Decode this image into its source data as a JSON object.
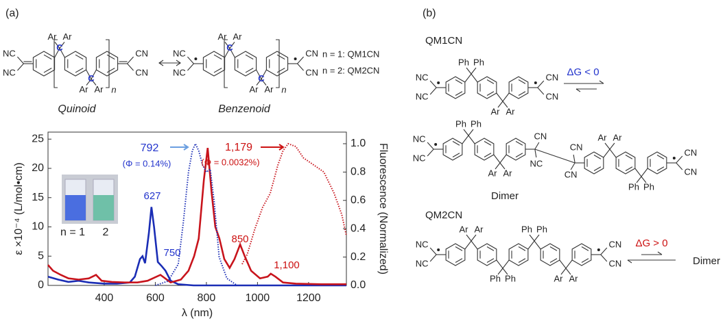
{
  "panel_a": {
    "label": "(a)",
    "quinoid": {
      "name": "Quinoid",
      "left": [
        "NC",
        "NC"
      ],
      "sp3": [
        [
          "Ar",
          "Ar"
        ],
        [
          "Ar",
          "Ar"
        ]
      ],
      "center": [
        "C",
        "C"
      ],
      "right": [
        "CN",
        "CN"
      ],
      "n": "n"
    },
    "benzenoid": {
      "name": "Benzenoid",
      "left": [
        "NC",
        "NC"
      ],
      "sp3": [
        [
          "Ar",
          "Ar"
        ],
        [
          "Ar",
          "Ar"
        ]
      ],
      "center": [
        "C",
        "C"
      ],
      "right": [
        "CN",
        "CN"
      ],
      "n": "n"
    },
    "legend": [
      "n = 1: QM1CN",
      "n = 2: QM2CN"
    ]
  },
  "panel_b": {
    "label": "(b)",
    "qm1cn": {
      "name": "QM1CN",
      "left": [
        "NC",
        "NC"
      ],
      "sp3": [
        [
          "Ph",
          "Ph"
        ],
        [
          "Ar",
          "Ar"
        ]
      ],
      "right": [
        "CN",
        "CN"
      ],
      "equilibrium": "ΔG < 0"
    },
    "dimer": {
      "name": "Dimer",
      "left_unit": {
        "left": [
          "NC",
          "NC"
        ],
        "sp3": [
          [
            "Ph",
            "Ph"
          ],
          [
            "Ar",
            "Ar"
          ]
        ]
      },
      "bridge": [
        "CN",
        "CN",
        "NC",
        "CN"
      ],
      "right_unit": {
        "sp3": [
          [
            "Ar",
            "Ar"
          ],
          [
            "Ph",
            "Ph"
          ]
        ],
        "right": [
          "CN",
          "CN"
        ]
      }
    },
    "qm2cn": {
      "name": "QM2CN",
      "left": [
        "NC",
        "NC"
      ],
      "sp3": [
        [
          "Ar",
          "Ar"
        ],
        [
          "Ph",
          "Ph"
        ],
        [
          "Ph",
          "Ph"
        ],
        [
          "Ar",
          "Ar"
        ]
      ],
      "right": [
        "CN",
        "CN"
      ],
      "equilibrium": "ΔG > 0",
      "product": "Dimer"
    }
  },
  "chart_data": {
    "type": "line",
    "xlabel": "λ (nm)",
    "ylabel": "ε ×10⁻⁴ (L/mol•cm)",
    "y2label": "Fluorescence (Normalized)",
    "xlim": [
      180,
      1348
    ],
    "xticks": [
      400,
      600,
      800,
      1000,
      1200
    ],
    "ylim": [
      0,
      26.2
    ],
    "yticks": [
      0,
      5,
      10,
      15,
      20,
      25
    ],
    "y2lim": [
      0,
      1.082
    ],
    "y2ticks": [
      {
        "value": 0,
        "label": "0.0"
      },
      0.2,
      0.4,
      0.6,
      0.8,
      {
        "value": 1,
        "label": "1.0"
      }
    ],
    "series": [
      {
        "color": "#1a2db5",
        "linestyle": "solid",
        "x": [
          180,
          220,
          260,
          300,
          340,
          400,
          450,
          500,
          520,
          540,
          550,
          560,
          575,
          585,
          595,
          610,
          625,
          640,
          660,
          690,
          750,
          900,
          1348
        ],
        "values": [
          1.5,
          1,
          0.6,
          0.8,
          0.5,
          0.3,
          0.3,
          0.5,
          1.5,
          4.5,
          5,
          3.8,
          9,
          13.4,
          10,
          4,
          3.3,
          2.5,
          0.8,
          0.2,
          0,
          0,
          0
        ]
      },
      {
        "color": "#c8141c",
        "linestyle": "solid",
        "x": [
          180,
          200,
          230,
          260,
          300,
          340,
          368,
          390,
          430,
          480,
          530,
          570,
          620,
          660,
          700,
          730,
          752,
          770,
          790,
          805,
          820,
          835,
          851,
          870,
          891,
          910,
          932,
          950,
          975,
          1010,
          1040,
          1052,
          1070,
          1100,
          1150,
          1250,
          1348
        ],
        "values": [
          3.5,
          2.5,
          1.8,
          1.2,
          1,
          1.2,
          1.8,
          0.8,
          0.6,
          0.5,
          0.5,
          0.8,
          1.8,
          0.5,
          1,
          2.5,
          5,
          8,
          18,
          23.5,
          16,
          10,
          8,
          4.5,
          3,
          4.5,
          7,
          5,
          2.5,
          1.2,
          1.5,
          2,
          1.5,
          0.5,
          0.3,
          0.2,
          0.2
        ]
      },
      {
        "color": "#1a2db5",
        "linestyle": "dotted",
        "axis": "y2",
        "x": [
          600,
          650,
          690,
          710,
          730,
          745,
          757,
          770,
          785,
          800,
          815,
          830,
          850,
          880,
          920
        ],
        "values": [
          0,
          0.03,
          0.15,
          0.45,
          0.8,
          0.95,
          1.0,
          0.95,
          0.85,
          0.8,
          0.82,
          0.6,
          0.2,
          0.05,
          0
        ]
      },
      {
        "color": "#c8141c",
        "linestyle": "dotted",
        "axis": "y2",
        "x": [
          940,
          960,
          990,
          1020,
          1050,
          1080,
          1100,
          1120,
          1150,
          1180,
          1220,
          1260,
          1300,
          1330,
          1348
        ],
        "values": [
          0.15,
          0.22,
          0.4,
          0.55,
          0.65,
          0.85,
          0.95,
          1.0,
          0.98,
          0.9,
          0.85,
          0.8,
          0.65,
          0.5,
          0.35
        ]
      }
    ],
    "annotations": [
      "792",
      "(Φ = 0.14%)",
      "1,179",
      "(Φ = 0.0032%)",
      "627",
      "750",
      "850",
      "1,100",
      "n = 1",
      "2"
    ]
  }
}
